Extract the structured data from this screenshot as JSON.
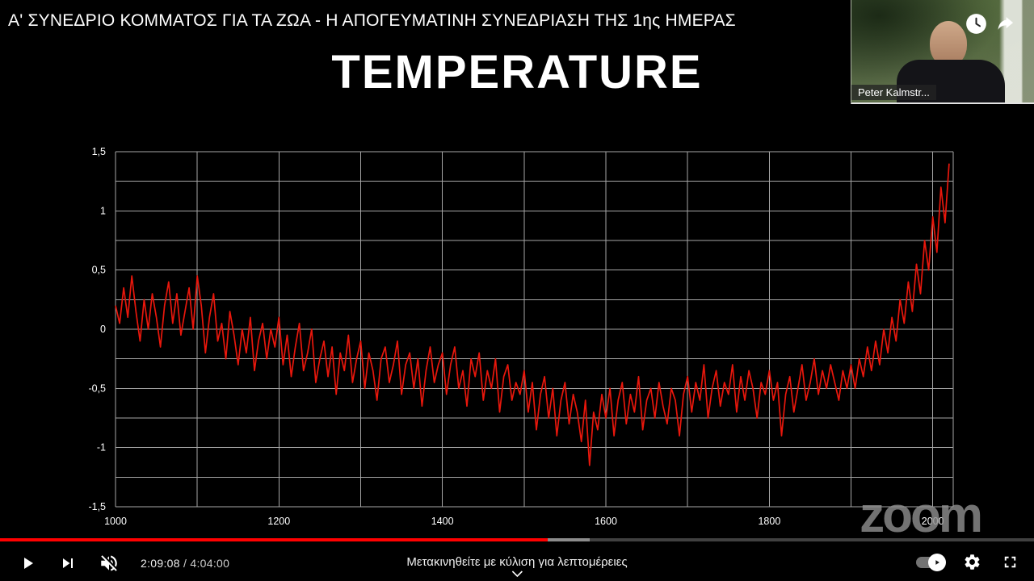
{
  "video": {
    "title": "Α' ΣΥΝΕΔΡΙΟ ΚΟΜΜΑΤΟΣ ΓΙΑ ΤΑ ΖΩΑ - Η ΑΠΟΓΕΥΜΑΤΙΝΗ ΣΥΝΕΔΡΙΑΣΗ ΤΗΣ 1ης ΗΜΕΡΑΣ"
  },
  "webcam": {
    "name": "Peter Kalmstr..."
  },
  "slide": {
    "title": "TEMPERATURE"
  },
  "watermark": {
    "text": "zoom"
  },
  "player": {
    "current_time": "2:09:08",
    "time_separator": " / ",
    "duration": "4:04:00",
    "progress_percent": 53,
    "buffer_percent": 57,
    "hint_text": "Μετακινηθείτε με κύλιση για λεπτομέρειες",
    "hint_chevron": "⌄"
  },
  "chart_data": {
    "type": "line",
    "title": "TEMPERATURE",
    "xlabel": "",
    "ylabel": "",
    "xlim": [
      1000,
      2025
    ],
    "ylim": [
      -1.5,
      1.5
    ],
    "x_ticks": [
      1000,
      1200,
      1400,
      1600,
      1800,
      2000
    ],
    "y_tick_labels": [
      "1,5",
      "1",
      "0,5",
      "0",
      "-0,5",
      "-1",
      "-1,5"
    ],
    "y_tick_values": [
      1.5,
      1,
      0.5,
      0,
      -0.5,
      -1,
      -1.5
    ],
    "x_grid": [
      1000,
      2000,
      100
    ],
    "y_grid_step": 0.25,
    "grid": true,
    "line_color": "#e8170c",
    "background": "#000000",
    "x_start": 1000,
    "x_step": 5,
    "values": [
      0.2,
      0.05,
      0.35,
      0.1,
      0.45,
      0.15,
      -0.1,
      0.25,
      0,
      0.3,
      0.1,
      -0.15,
      0.2,
      0.4,
      0.05,
      0.3,
      -0.05,
      0.15,
      0.35,
      0,
      0.45,
      0.2,
      -0.2,
      0.1,
      0.3,
      -0.1,
      0.05,
      -0.25,
      0.15,
      -0.05,
      -0.3,
      0,
      -0.2,
      0.1,
      -0.35,
      -0.1,
      0.05,
      -0.25,
      0,
      -0.15,
      0.1,
      -0.3,
      -0.05,
      -0.4,
      -0.15,
      0.05,
      -0.35,
      -0.2,
      0,
      -0.45,
      -0.25,
      -0.1,
      -0.4,
      -0.15,
      -0.55,
      -0.2,
      -0.35,
      -0.05,
      -0.45,
      -0.25,
      -0.1,
      -0.5,
      -0.2,
      -0.35,
      -0.6,
      -0.25,
      -0.15,
      -0.45,
      -0.3,
      -0.1,
      -0.55,
      -0.3,
      -0.2,
      -0.5,
      -0.25,
      -0.65,
      -0.35,
      -0.15,
      -0.45,
      -0.3,
      -0.2,
      -0.55,
      -0.3,
      -0.15,
      -0.5,
      -0.35,
      -0.65,
      -0.25,
      -0.4,
      -0.2,
      -0.6,
      -0.35,
      -0.5,
      -0.25,
      -0.7,
      -0.4,
      -0.3,
      -0.6,
      -0.45,
      -0.55,
      -0.35,
      -0.7,
      -0.45,
      -0.85,
      -0.55,
      -0.4,
      -0.75,
      -0.5,
      -0.9,
      -0.6,
      -0.45,
      -0.8,
      -0.55,
      -0.7,
      -0.95,
      -0.6,
      -1.15,
      -0.7,
      -0.85,
      -0.55,
      -0.75,
      -0.5,
      -0.9,
      -0.6,
      -0.45,
      -0.8,
      -0.55,
      -0.7,
      -0.4,
      -0.85,
      -0.6,
      -0.5,
      -0.75,
      -0.45,
      -0.65,
      -0.8,
      -0.5,
      -0.6,
      -0.9,
      -0.55,
      -0.4,
      -0.7,
      -0.45,
      -0.6,
      -0.3,
      -0.75,
      -0.5,
      -0.35,
      -0.65,
      -0.45,
      -0.55,
      -0.3,
      -0.7,
      -0.4,
      -0.6,
      -0.35,
      -0.5,
      -0.75,
      -0.45,
      -0.55,
      -0.35,
      -0.6,
      -0.45,
      -0.9,
      -0.55,
      -0.4,
      -0.7,
      -0.5,
      -0.3,
      -0.6,
      -0.45,
      -0.25,
      -0.55,
      -0.35,
      -0.5,
      -0.3,
      -0.45,
      -0.6,
      -0.35,
      -0.5,
      -0.3,
      -0.5,
      -0.25,
      -0.4,
      -0.15,
      -0.35,
      -0.1,
      -0.3,
      0,
      -0.2,
      0.1,
      -0.1,
      0.25,
      0.05,
      0.4,
      0.15,
      0.55,
      0.3,
      0.75,
      0.5,
      0.95,
      0.65,
      1.2,
      0.9,
      1.4
    ]
  }
}
